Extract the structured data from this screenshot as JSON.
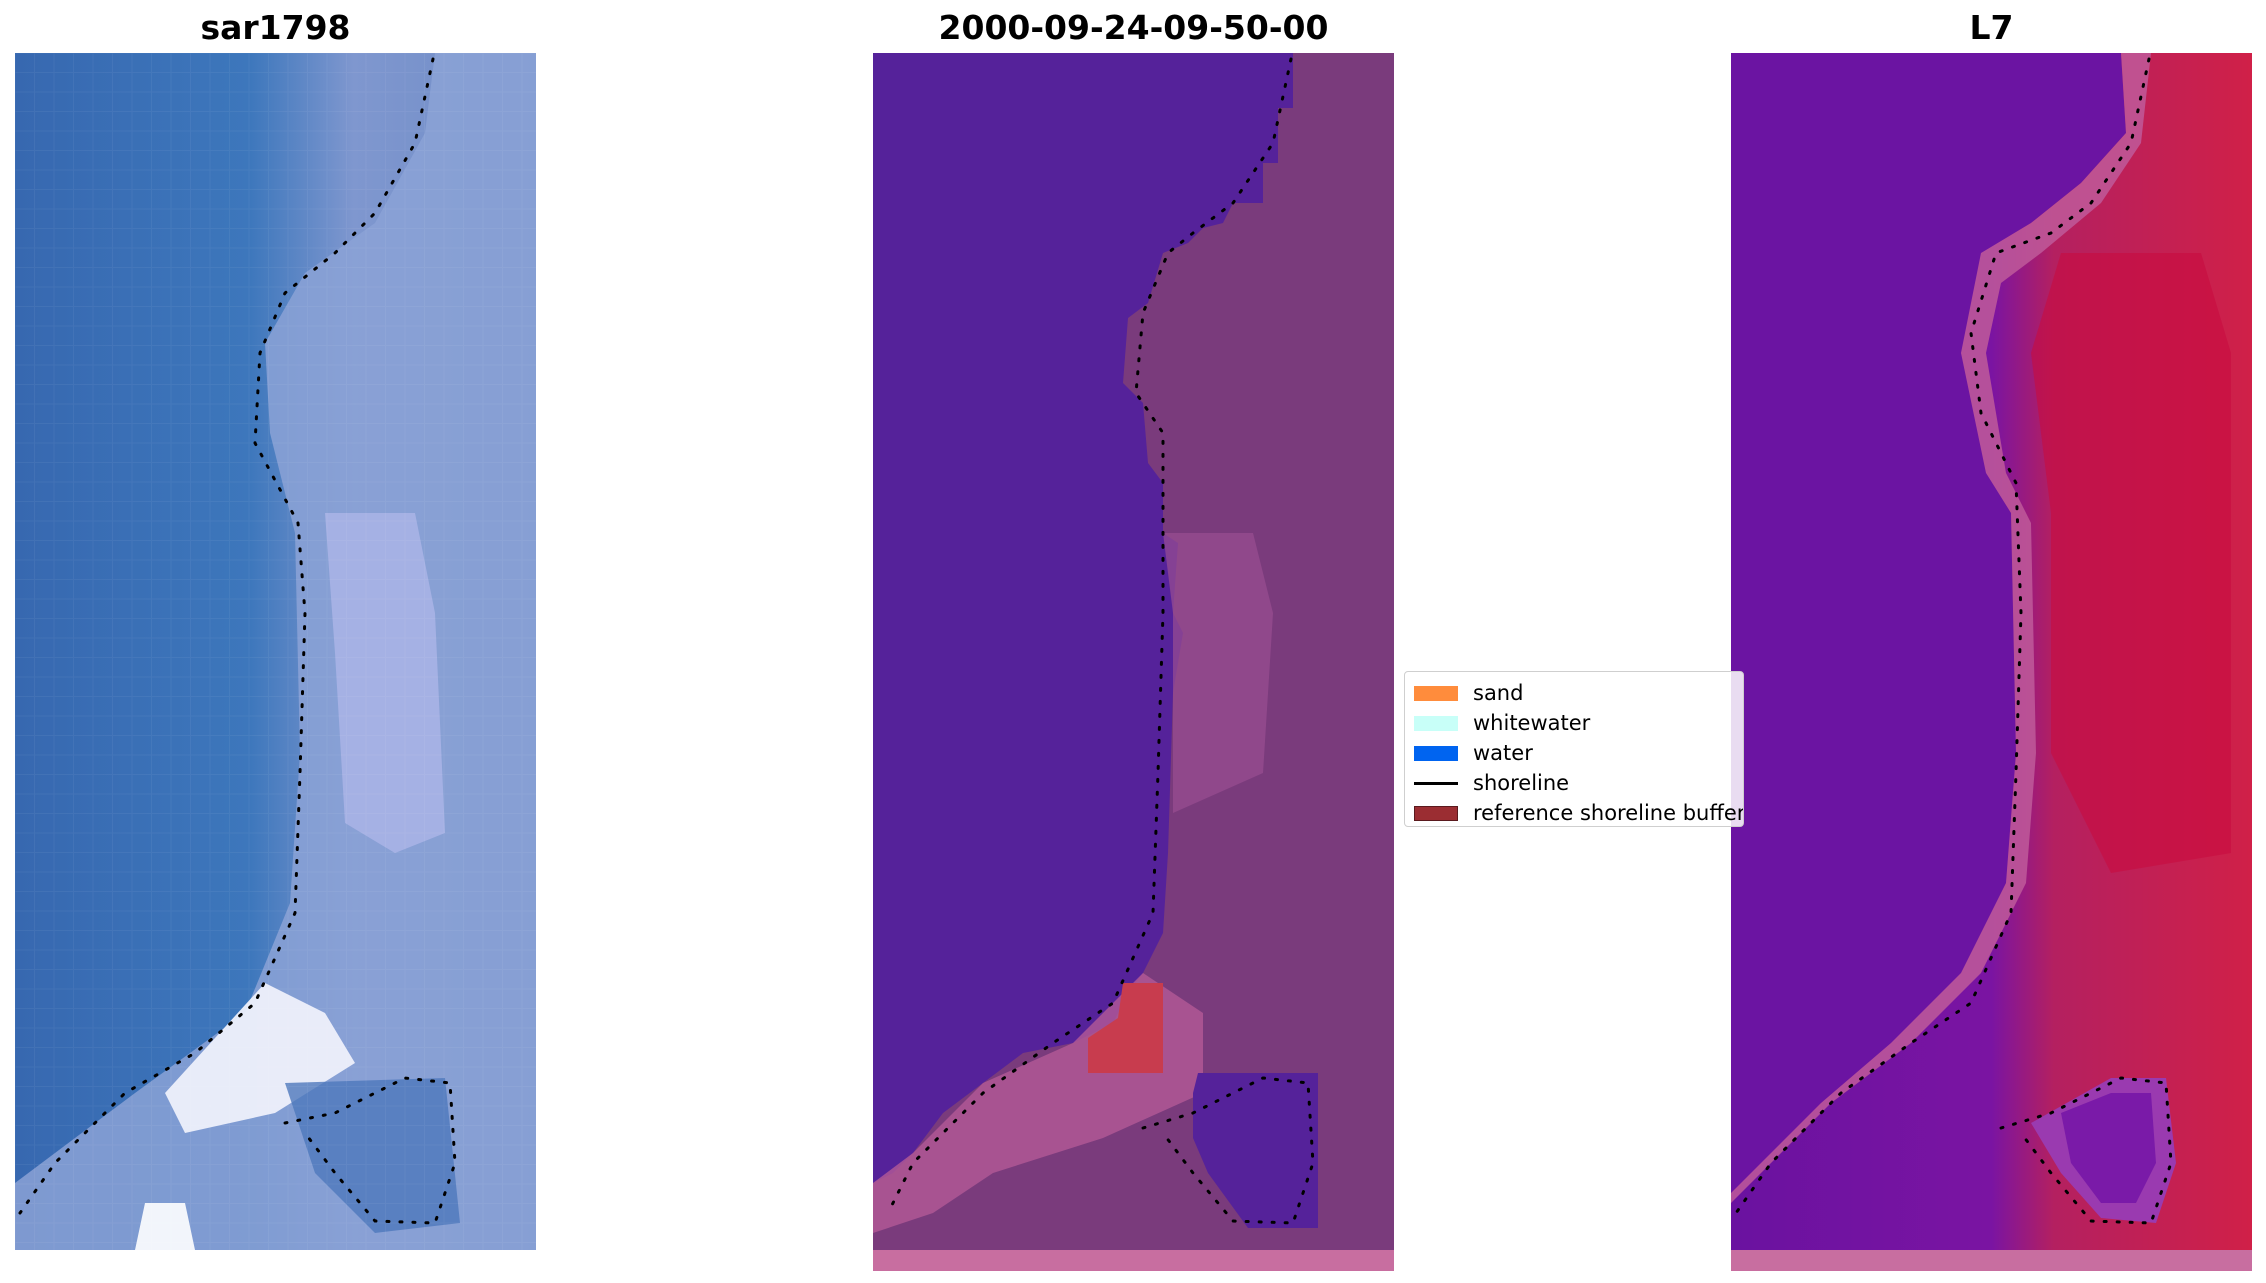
{
  "panels": {
    "left_title": "sar1798",
    "middle_title": "2000-09-24-09-50-00",
    "right_title": "L7"
  },
  "legend": {
    "items": [
      {
        "label": "sand",
        "color": "#ff8c3c",
        "kind": "patch"
      },
      {
        "label": "whitewater",
        "color": "#c8fff8",
        "kind": "patch"
      },
      {
        "label": "water",
        "color": "#0064f0",
        "kind": "patch"
      },
      {
        "label": "shoreline",
        "color": "#000000",
        "kind": "line"
      },
      {
        "label": "reference shoreline buffer",
        "color": "#9b2d32",
        "kind": "patch"
      }
    ]
  },
  "colors": {
    "rgb_water": "#3a6fb5",
    "rgb_land": "#8ea3d6",
    "class_water": "#55229a",
    "class_land": "#7a3a7a",
    "class_edge": "#b45a96",
    "class_sand": "#c83c4e",
    "ndwi_water": "#6a12a0",
    "ndwi_land": "#c8184a"
  }
}
